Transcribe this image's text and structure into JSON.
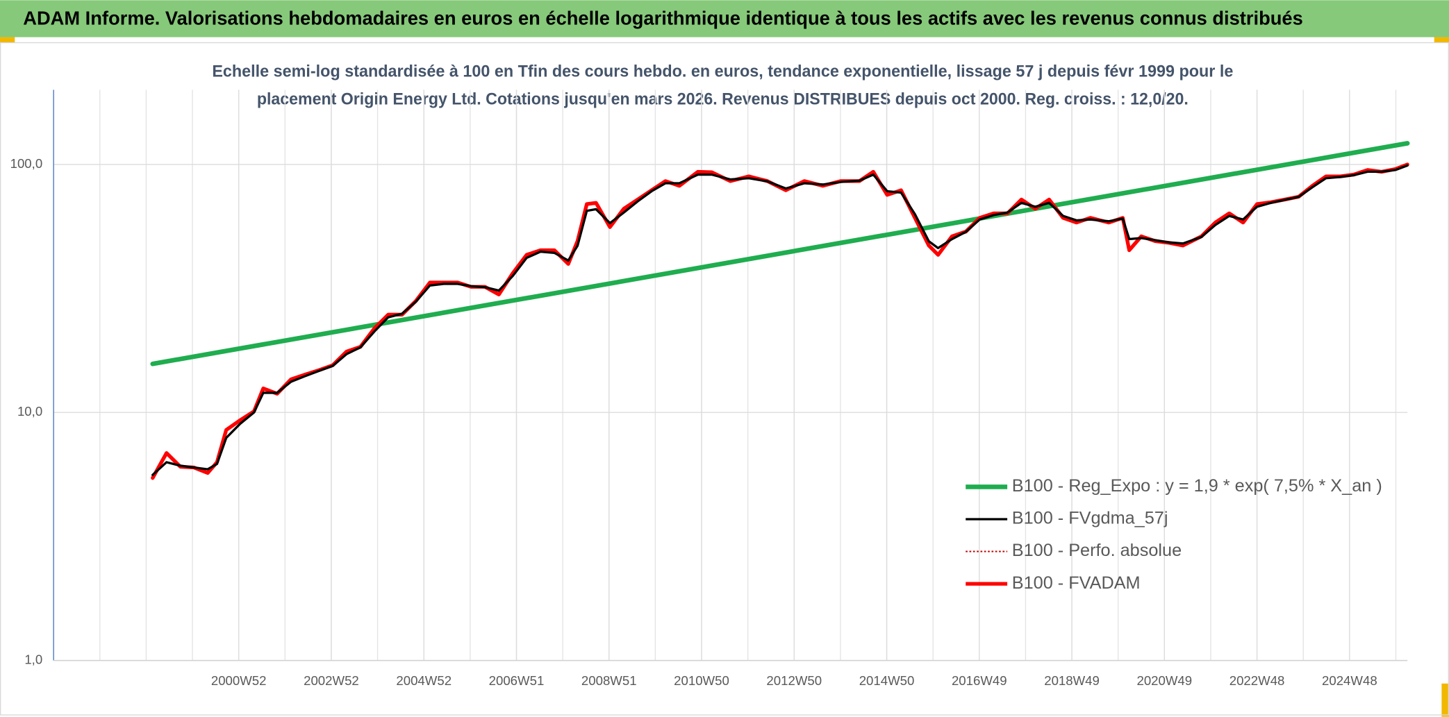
{
  "chart_data": {
    "type": "line",
    "title": "ADAM Informe. Valorisations hebdomadaires en euros en échelle logarithmique identique à tous les actifs avec les revenus connus distribués",
    "subtitle": [
      "Echelle semi-log standardisée à 100 en Tfin des cours hebdo. en euros, tendance exponentielle, lissage 57 j depuis févr 1999 pour le",
      "placement Origin Energy Ltd. Cotations jusqu'en mars 2026. Revenus DISTRIBUES depuis oct 2000. Reg. croiss. : 12,0/20."
    ],
    "log_y": true,
    "grid": true,
    "legend": "lower right",
    "xlim": [
      1997,
      2026.25
    ],
    "ylim": [
      1,
      200
    ],
    "yticks": [
      {
        "value": 1,
        "label": "1,0"
      },
      {
        "value": 10,
        "label": "10,0"
      },
      {
        "value": 100,
        "label": "100,0"
      }
    ],
    "xticks": [
      {
        "value": 2001,
        "label": "2000W52"
      },
      {
        "value": 2003,
        "label": "2002W52"
      },
      {
        "value": 2005,
        "label": "2004W52"
      },
      {
        "value": 2007,
        "label": "2006W51"
      },
      {
        "value": 2009,
        "label": "2008W51"
      },
      {
        "value": 2011,
        "label": "2010W50"
      },
      {
        "value": 2013,
        "label": "2012W50"
      },
      {
        "value": 2015,
        "label": "2014W50"
      },
      {
        "value": 2017,
        "label": "2016W49"
      },
      {
        "value": 2019,
        "label": "2018W49"
      },
      {
        "value": 2021,
        "label": "2020W49"
      },
      {
        "value": 2023,
        "label": "2022W48"
      },
      {
        "value": 2025,
        "label": "2024W48"
      }
    ],
    "x": [
      1999.14,
      1999.44,
      1999.74,
      2000.03,
      2000.33,
      2000.53,
      2000.73,
      2001.03,
      2001.33,
      2001.53,
      2001.83,
      2002.13,
      2002.43,
      2002.73,
      2003.03,
      2003.33,
      2003.63,
      2003.93,
      2004.23,
      2004.53,
      2004.83,
      2005.13,
      2005.43,
      2005.73,
      2006.02,
      2006.32,
      2006.62,
      2006.92,
      2007.22,
      2007.52,
      2007.82,
      2008.12,
      2008.32,
      2008.52,
      2008.72,
      2009.02,
      2009.32,
      2009.62,
      2009.92,
      2010.22,
      2010.52,
      2010.92,
      2011.22,
      2011.62,
      2012.02,
      2012.42,
      2012.82,
      2013.22,
      2013.62,
      2014.01,
      2014.41,
      2014.71,
      2015.01,
      2015.31,
      2015.61,
      2015.91,
      2016.11,
      2016.41,
      2016.71,
      2017.01,
      2017.31,
      2017.61,
      2017.91,
      2018.21,
      2018.51,
      2018.81,
      2019.1,
      2019.4,
      2019.8,
      2020.1,
      2020.24,
      2020.5,
      2020.8,
      2021.1,
      2021.4,
      2021.8,
      2022.1,
      2022.4,
      2022.7,
      2023.0,
      2023.3,
      2023.6,
      2023.9,
      2024.2,
      2024.49,
      2024.8,
      2025.09,
      2025.39,
      2025.69,
      2025.99,
      2026.25
    ],
    "series": [
      {
        "name": "B100 - Reg_Expo : y = 1,9 * exp( 7,5% *  X_an )",
        "color": "#1fad4f",
        "width": 5,
        "x": [
          1999.14,
          2026.25
        ],
        "values": [
          15.7,
          121.7
        ]
      },
      {
        "name": "B100 - FVgdma_57j",
        "color": "#000000",
        "width": 2.5,
        "values": [
          5.6,
          6.3,
          6.1,
          6.0,
          5.9,
          6.2,
          7.9,
          9.0,
          10.0,
          12.0,
          12.0,
          13.3,
          14.0,
          14.7,
          15.4,
          17.2,
          18.3,
          21.2,
          24.2,
          25.0,
          28.0,
          32.5,
          33.0,
          33.0,
          32.3,
          32.0,
          31.0,
          35.5,
          42.0,
          44.5,
          44.0,
          41.0,
          47.0,
          65.0,
          66.0,
          58.0,
          64.0,
          71.0,
          78.0,
          84.0,
          84.0,
          91.0,
          91.0,
          87.0,
          88.0,
          85.5,
          80.0,
          84.0,
          83.0,
          85.0,
          86.0,
          91.0,
          78.0,
          77.0,
          63.0,
          49.0,
          46.0,
          50.0,
          53.5,
          60.0,
          62.5,
          64.0,
          70.0,
          67.5,
          70.0,
          62.0,
          59.5,
          60.0,
          59.0,
          60.5,
          50.0,
          50.5,
          49.5,
          48.5,
          48.0,
          51.0,
          57.0,
          62.0,
          60.0,
          67.5,
          70.0,
          72.0,
          74.0,
          81.0,
          88.0,
          89.0,
          90.5,
          93.5,
          93.5,
          95.0,
          99.0
        ]
      },
      {
        "name": "B100 - Perfo. absolue",
        "color": "#c00000",
        "width": 1.5,
        "dash": true,
        "values": [
          5.44,
          6.86,
          6.04,
          6.0,
          5.7,
          6.3,
          8.5,
          9.3,
          10.1,
          12.5,
          11.9,
          13.6,
          14.2,
          14.8,
          15.5,
          17.6,
          18.4,
          21.8,
          24.8,
          24.8,
          28.2,
          33.4,
          33.4,
          33.4,
          32.1,
          32.1,
          29.9,
          36.4,
          43.2,
          45.1,
          45.1,
          39.7,
          49.1,
          69.2,
          70.0,
          55.9,
          66.3,
          72.2,
          78.7,
          85.7,
          82.0,
          93.4,
          93.0,
          85.7,
          89.5,
          85.7,
          78.7,
          85.7,
          82.0,
          85.7,
          85.7,
          93.4,
          75.4,
          78.7,
          60.9,
          47.1,
          43.2,
          51.3,
          53.6,
          60.9,
          63.5,
          63.5,
          72.2,
          66.3,
          72.2,
          60.9,
          58.3,
          60.9,
          58.3,
          60.9,
          45.1,
          51.3,
          49.1,
          48.3,
          47.1,
          51.3,
          58.3,
          63.5,
          58.3,
          69.2,
          70.4,
          72.2,
          74.1,
          82.1,
          89.5,
          89.5,
          91.0,
          95.0,
          93.4,
          95.8,
          100
        ]
      },
      {
        "name": "B100 - FVADAM",
        "color": "#ff0000",
        "width": 4,
        "values": [
          5.44,
          6.86,
          6.04,
          6.0,
          5.7,
          6.3,
          8.5,
          9.3,
          10.1,
          12.5,
          11.9,
          13.6,
          14.2,
          14.8,
          15.5,
          17.6,
          18.4,
          21.8,
          24.8,
          24.8,
          28.2,
          33.4,
          33.4,
          33.4,
          32.1,
          32.1,
          29.9,
          36.4,
          43.2,
          45.1,
          45.1,
          39.7,
          49.1,
          69.2,
          70.0,
          55.9,
          66.3,
          72.2,
          78.7,
          85.7,
          82.0,
          93.4,
          93.0,
          85.7,
          89.5,
          85.7,
          78.7,
          85.7,
          82.0,
          85.7,
          85.7,
          93.4,
          75.4,
          78.7,
          60.9,
          47.1,
          43.2,
          51.3,
          53.6,
          60.9,
          63.5,
          63.5,
          72.2,
          66.3,
          72.2,
          60.9,
          58.3,
          60.9,
          58.3,
          60.9,
          45.1,
          51.3,
          49.1,
          48.3,
          47.1,
          51.3,
          58.3,
          63.5,
          58.3,
          69.2,
          70.4,
          72.2,
          74.1,
          82.1,
          89.5,
          89.5,
          91.0,
          95.0,
          93.4,
          95.8,
          100
        ]
      }
    ]
  }
}
